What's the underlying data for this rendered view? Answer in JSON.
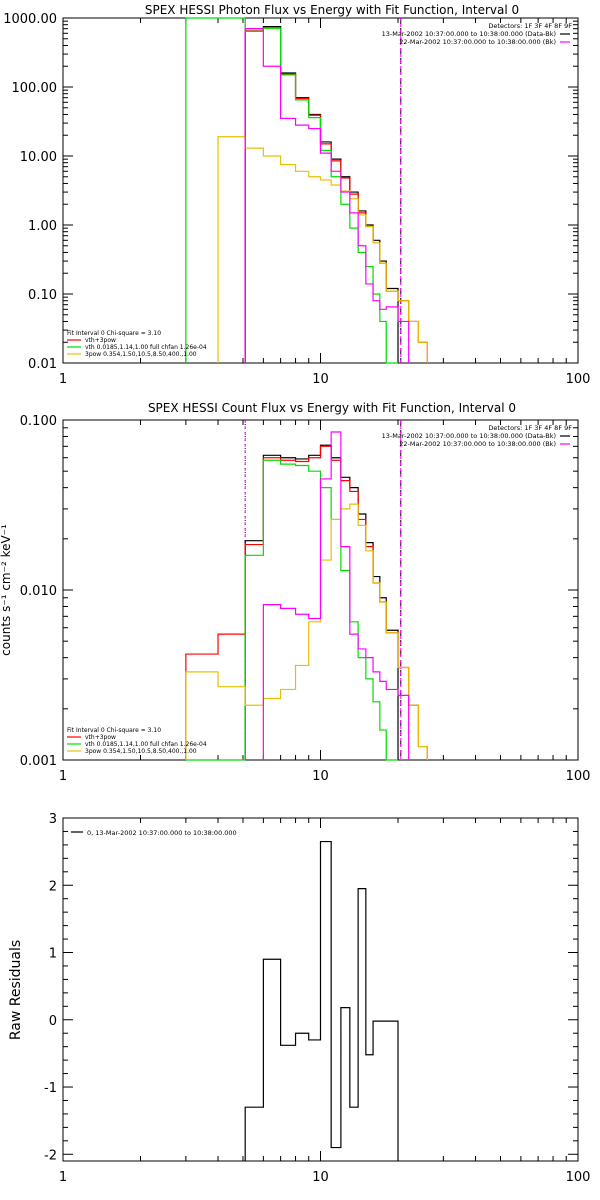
{
  "chart_data": [
    {
      "type": "line",
      "step": true,
      "title": "SPEX HESSI Photon Flux vs Energy with Fit Function, Interval 0",
      "xscale": "log",
      "yscale": "log",
      "xlim": [
        1,
        100
      ],
      "ylim": [
        0.01,
        1000
      ],
      "xticks": [
        {
          "v": 1,
          "label": "1"
        },
        {
          "v": 10,
          "label": "10"
        },
        {
          "v": 100,
          "label": "100"
        }
      ],
      "yticks": [
        {
          "v": 1000,
          "label": "1000.00"
        },
        {
          "v": 100,
          "label": "100.00"
        },
        {
          "v": 10,
          "label": "10.00"
        },
        {
          "v": 1,
          "label": "1.00"
        },
        {
          "v": 0.1,
          "label": "0.10"
        },
        {
          "v": 0.01,
          "label": "0.01"
        }
      ],
      "vlines": [
        {
          "x": 5.1,
          "style": "dotted",
          "color": "#000000"
        },
        {
          "x": 20.5,
          "style": "dashed",
          "color": "#000000"
        },
        {
          "x": 5.1,
          "style": "solid",
          "color": "#ff00ff"
        },
        {
          "x": 20.5,
          "style": "solid",
          "color": "#ff00ff"
        }
      ],
      "header": [
        "Detectors: 1F 3F 4F 8F 9F",
        "13-Mar-2002 10:37:00.000 to 10:38:00.000 (Data-Bk)",
        "22-Mar-2002 10:37:00.000 to 10:38:00.000 (Bk)"
      ],
      "header_swatches": [
        "#000000",
        "#ff00ff"
      ],
      "fit_text": [
        "Fit Interval 0   Chi-square = 3.10",
        "vth+3pow",
        "vth 0.0185,1.14,1.00  full chfan 1.26e-04",
        "3pow 0.354,1.50,10.5,8.50,400.,1.00"
      ],
      "fit_colors": [
        "",
        "#ff0000",
        "#00dd00",
        "#e8c000"
      ],
      "edges": [
        3,
        4,
        5.1,
        6,
        7,
        8,
        9,
        10,
        11,
        12,
        13,
        14,
        15,
        16,
        17,
        18,
        20,
        22,
        24,
        26
      ],
      "series": [
        {
          "color": "#000000",
          "values": [
            null,
            null,
            700,
            750,
            160,
            70,
            40,
            16,
            9,
            5,
            3,
            1.6,
            1,
            0.6,
            0.3,
            0.12,
            null,
            null,
            null
          ]
        },
        {
          "color": "#ff0000",
          "values": [
            null,
            null,
            650,
            720,
            155,
            68,
            39,
            15,
            8.5,
            4.8,
            2.8,
            1.5,
            0.95,
            0.55,
            0.28,
            0.11,
            0.08,
            0.04,
            0.02
          ]
        },
        {
          "color": "#00dd00",
          "values": [
            1000,
            1000,
            640,
            710,
            150,
            65,
            36,
            12,
            5,
            2,
            0.9,
            0.4,
            0.25,
            0.1,
            0.04,
            0.01,
            null,
            null,
            null
          ]
        },
        {
          "color": "#e8c000",
          "values": [
            null,
            19,
            13,
            10,
            7.5,
            6,
            5,
            4.5,
            3.8,
            3.1,
            2.4,
            1.4,
            0.95,
            0.55,
            0.28,
            0.11,
            0.08,
            0.04,
            0.02
          ]
        },
        {
          "color": "#ff00ff",
          "values": [
            null,
            null,
            700,
            200,
            35,
            28,
            25,
            11,
            6,
            3,
            1.5,
            0.5,
            0.14,
            0.08,
            0.06,
            0.065,
            0.04,
            null,
            null
          ]
        }
      ]
    },
    {
      "type": "line",
      "step": true,
      "title": "SPEX HESSI Count Flux vs Energy with Fit Function, Interval 0",
      "ylabel": "counts s⁻¹ cm⁻² keV⁻¹",
      "xscale": "log",
      "yscale": "log",
      "xlim": [
        1,
        100
      ],
      "ylim": [
        0.001,
        0.1
      ],
      "xticks": [
        {
          "v": 1,
          "label": "1"
        },
        {
          "v": 10,
          "label": "10"
        },
        {
          "v": 100,
          "label": "100"
        }
      ],
      "yticks": [
        {
          "v": 0.1,
          "label": "0.100"
        },
        {
          "v": 0.01,
          "label": "0.010"
        },
        {
          "v": 0.001,
          "label": "0.001"
        }
      ],
      "vlines": [
        {
          "x": 5.1,
          "style": "dotted",
          "color": "#000000"
        },
        {
          "x": 20.5,
          "style": "dashed",
          "color": "#000000"
        },
        {
          "x": 5.1,
          "style": "solid",
          "color": "#ff00ff"
        },
        {
          "x": 20.5,
          "style": "solid",
          "color": "#ff00ff"
        }
      ],
      "header": [
        "Detectors: 1F 3F 4F 8F 9F",
        "13-Mar-2002 10:37:00.000 to 10:38:00.000 (Data-Bk)",
        "22-Mar-2002 10:37:00.000 to 10:38:00.000 (Bk)"
      ],
      "header_swatches": [
        "#000000",
        "#ff00ff"
      ],
      "fit_text": [
        "Fit Interval 0   Chi-square = 3.10",
        "vth+3pow",
        "vth 0.0185,1.14,1.00  full chfan 1.26e-04",
        "3pow 0.354,1.50,10.5,8.50,400.,1.00"
      ],
      "fit_colors": [
        "",
        "#ff0000",
        "#00dd00",
        "#e8c000"
      ],
      "edges": [
        3,
        4,
        5.1,
        6,
        7,
        8,
        9,
        10,
        11,
        12,
        13,
        14,
        15,
        16,
        17,
        18,
        20,
        22,
        24,
        26
      ],
      "series": [
        {
          "color": "#000000",
          "values": [
            null,
            null,
            0.0195,
            0.062,
            0.06,
            0.059,
            0.062,
            0.071,
            0.06,
            0.046,
            0.04,
            0.028,
            0.019,
            0.012,
            0.009,
            0.0058,
            null,
            null,
            null
          ]
        },
        {
          "color": "#ff0000",
          "values": [
            0.0042,
            0.0055,
            0.0185,
            0.06,
            0.058,
            0.057,
            0.06,
            0.07,
            0.058,
            0.044,
            0.038,
            0.026,
            0.018,
            0.011,
            0.0085,
            0.0056,
            0.0035,
            0.0021,
            0.0012
          ]
        },
        {
          "color": "#00dd00",
          "values": [
            0.001,
            0.001,
            0.016,
            0.058,
            0.055,
            0.054,
            0.05,
            0.04,
            0.026,
            0.013,
            0.0065,
            0.004,
            0.003,
            0.0022,
            0.0015,
            0.001,
            null,
            null,
            null
          ]
        },
        {
          "color": "#e8c000",
          "values": [
            0.0033,
            0.0027,
            0.0021,
            0.0023,
            0.0026,
            0.0036,
            0.0065,
            0.015,
            0.026,
            0.03,
            0.032,
            0.024,
            0.017,
            0.011,
            0.0085,
            0.0056,
            0.0035,
            0.0021,
            0.0012
          ]
        },
        {
          "color": "#ff00ff",
          "values": [
            null,
            null,
            null,
            0.0082,
            0.0078,
            0.0072,
            0.0068,
            0.045,
            0.085,
            0.018,
            0.0055,
            0.0045,
            0.004,
            0.0033,
            0.0029,
            0.0026,
            0.0024,
            null,
            null
          ]
        }
      ]
    },
    {
      "type": "line",
      "step": true,
      "ylabel": "Raw Residuals",
      "xscale": "log",
      "yscale": "linear",
      "xlim": [
        1,
        100
      ],
      "ylim": [
        -2.1,
        3
      ],
      "xticks": [
        {
          "v": 1,
          "label": "1"
        },
        {
          "v": 10,
          "label": "10"
        },
        {
          "v": 100,
          "label": "100"
        }
      ],
      "yticks": [
        {
          "v": 3,
          "label": "3"
        },
        {
          "v": 2,
          "label": "2"
        },
        {
          "v": 1,
          "label": "1"
        },
        {
          "v": 0,
          "label": "0"
        },
        {
          "v": -1,
          "label": "-1"
        },
        {
          "v": -2,
          "label": "-2"
        }
      ],
      "legend": "0, 13-Mar-2002 10:37:00.000 to 10:38:00.000",
      "edges": [
        5.1,
        6,
        7,
        8,
        9,
        10,
        11,
        12,
        13,
        14,
        15,
        16,
        17,
        18,
        20
      ],
      "series": [
        {
          "color": "#000000",
          "values": [
            -1.3,
            0.9,
            -0.38,
            -0.2,
            -0.3,
            2.65,
            -1.9,
            0.18,
            -1.3,
            1.95,
            -0.52,
            -0.02,
            -0.02,
            -0.02
          ]
        }
      ],
      "drop_ends": true
    }
  ]
}
